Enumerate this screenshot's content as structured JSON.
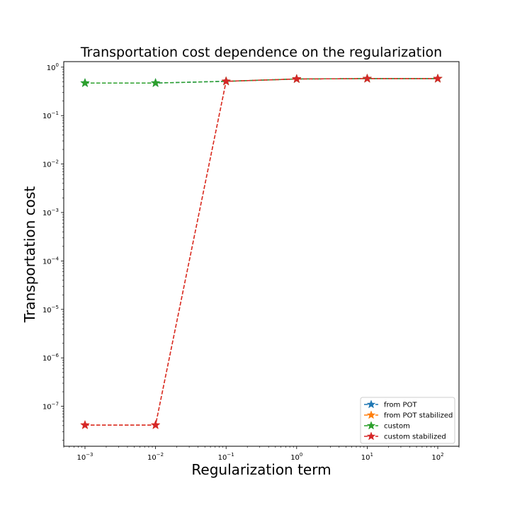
{
  "chart_data": {
    "type": "line",
    "title": "Transportation cost dependence on the regularization",
    "xlabel": "Regularization term",
    "ylabel": "Transportation cost",
    "xscale": "log",
    "yscale": "log",
    "xlim": [
      0.0005,
      200
    ],
    "ylim": [
      1.5e-08,
      1.3
    ],
    "x": [
      0.001,
      0.01,
      0.1,
      1,
      10,
      100
    ],
    "x_ticks": [
      {
        "base": "10",
        "exp": "−3",
        "value": 0.001
      },
      {
        "base": "10",
        "exp": "−2",
        "value": 0.01
      },
      {
        "base": "10",
        "exp": "−1",
        "value": 0.1
      },
      {
        "base": "10",
        "exp": "0",
        "value": 1
      },
      {
        "base": "10",
        "exp": "1",
        "value": 10
      },
      {
        "base": "10",
        "exp": "2",
        "value": 100
      }
    ],
    "y_ticks": [
      {
        "base": "10",
        "exp": "0",
        "value": 1
      },
      {
        "base": "10",
        "exp": "−1",
        "value": 0.1
      },
      {
        "base": "10",
        "exp": "−2",
        "value": 0.01
      },
      {
        "base": "10",
        "exp": "−3",
        "value": 0.001
      },
      {
        "base": "10",
        "exp": "−4",
        "value": 0.0001
      },
      {
        "base": "10",
        "exp": "−5",
        "value": 1e-05
      },
      {
        "base": "10",
        "exp": "−6",
        "value": 1e-06
      },
      {
        "base": "10",
        "exp": "−7",
        "value": 1e-07
      }
    ],
    "series": [
      {
        "name": "from POT",
        "color": "#1f77b4",
        "values": [
          0.47,
          0.47,
          0.51,
          0.57,
          0.58,
          0.58
        ]
      },
      {
        "name": "from POT stabilized",
        "color": "#ff7f0e",
        "values": [
          4.1e-08,
          4.1e-08,
          0.51,
          0.57,
          0.58,
          0.58
        ]
      },
      {
        "name": "custom",
        "color": "#2ca02c",
        "values": [
          0.47,
          0.47,
          0.51,
          0.57,
          0.58,
          0.58
        ]
      },
      {
        "name": "custom stabilized",
        "color": "#d62728",
        "values": [
          4.1e-08,
          4.1e-08,
          0.51,
          0.57,
          0.58,
          0.58
        ]
      }
    ],
    "legend_position": "lower-right",
    "grid": false,
    "marker": "star",
    "linestyle": "dashed"
  }
}
